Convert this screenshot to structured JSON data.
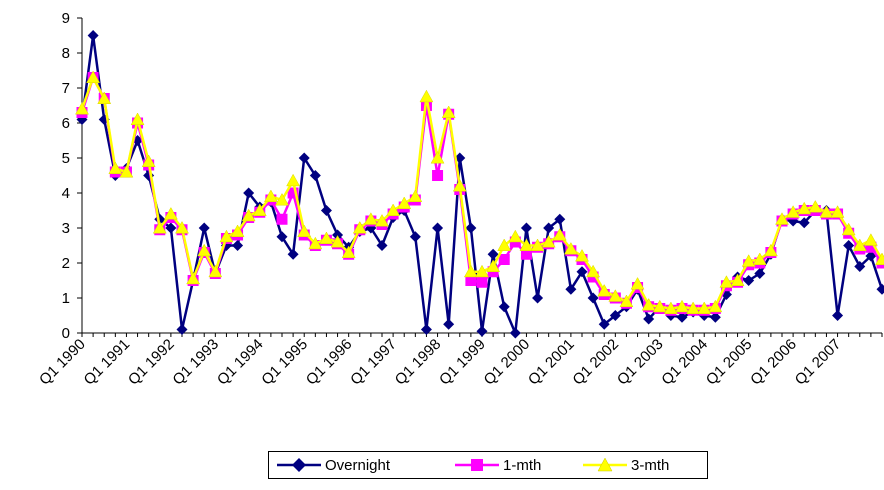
{
  "chart_data": {
    "type": "line",
    "title": "",
    "xlabel": "",
    "ylabel": "",
    "ylim": [
      0,
      9
    ],
    "yticks": [
      0,
      1,
      2,
      3,
      4,
      5,
      6,
      7,
      8,
      9
    ],
    "grid": false,
    "legend_position": "bottom",
    "x_tick_labels": [
      "Q1 1990",
      "Q1 1991",
      "Q1 1992",
      "Q1 1993",
      "Q1 1994",
      "Q1 1995",
      "Q1 1996",
      "Q1 1997",
      "Q1 1998",
      "Q1 1999",
      "Q1 2000",
      "Q1 2001",
      "Q1 2002",
      "Q1 2003",
      "Q1 2004",
      "Q1 2005",
      "Q1 2006",
      "Q1 2007"
    ],
    "x": [
      "Q1 1990",
      "Q2 1990",
      "Q3 1990",
      "Q4 1990",
      "Q1 1991",
      "Q2 1991",
      "Q3 1991",
      "Q4 1991",
      "Q1 1992",
      "Q2 1992",
      "Q3 1992",
      "Q4 1992",
      "Q1 1993",
      "Q2 1993",
      "Q3 1993",
      "Q4 1993",
      "Q1 1994",
      "Q2 1994",
      "Q3 1994",
      "Q4 1994",
      "Q1 1995",
      "Q2 1995",
      "Q3 1995",
      "Q4 1995",
      "Q1 1996",
      "Q2 1996",
      "Q3 1996",
      "Q4 1996",
      "Q1 1997",
      "Q2 1997",
      "Q3 1997",
      "Q4 1997",
      "Q1 1998",
      "Q2 1998",
      "Q3 1998",
      "Q4 1998",
      "Q1 1999",
      "Q2 1999",
      "Q3 1999",
      "Q4 1999",
      "Q1 2000",
      "Q2 2000",
      "Q3 2000",
      "Q4 2000",
      "Q1 2001",
      "Q2 2001",
      "Q3 2001",
      "Q4 2001",
      "Q1 2002",
      "Q2 2002",
      "Q3 2002",
      "Q4 2002",
      "Q1 2003",
      "Q2 2003",
      "Q3 2003",
      "Q4 2003",
      "Q1 2004",
      "Q2 2004",
      "Q3 2004",
      "Q4 2004",
      "Q1 2005",
      "Q2 2005",
      "Q3 2005",
      "Q4 2005",
      "Q1 2006",
      "Q2 2006",
      "Q3 2006",
      "Q4 2006",
      "Q1 2007",
      "Q2 2007",
      "Q3 2007",
      "Q4 2007",
      "Q1 2008"
    ],
    "series": [
      {
        "name": "Overnight",
        "color": "#000080",
        "marker": "diamond",
        "values": [
          6.1,
          8.5,
          6.1,
          4.5,
          4.7,
          5.5,
          4.5,
          3.25,
          3.0,
          0.1,
          1.5,
          3.0,
          1.7,
          2.5,
          2.5,
          4.0,
          3.6,
          3.75,
          2.75,
          2.25,
          5.0,
          4.5,
          3.5,
          2.8,
          2.45,
          2.9,
          3.0,
          2.5,
          3.3,
          3.5,
          2.75,
          0.1,
          3.0,
          0.25,
          5.0,
          3.0,
          0.05,
          2.25,
          0.75,
          0.0,
          3.0,
          1.0,
          3.0,
          3.25,
          1.25,
          1.75,
          1.0,
          0.25,
          0.5,
          0.75,
          1.25,
          0.4,
          0.75,
          0.5,
          0.45,
          0.6,
          0.5,
          0.45,
          1.1,
          1.6,
          1.5,
          1.7,
          2.25,
          3.25,
          3.2,
          3.15,
          3.5,
          3.5,
          0.5,
          2.5,
          1.9,
          2.2,
          1.25
        ]
      },
      {
        "name": "1-mth",
        "color": "#FF00FF",
        "marker": "square",
        "values": [
          6.3,
          7.3,
          6.7,
          4.6,
          4.6,
          6.0,
          4.8,
          2.95,
          3.3,
          2.95,
          1.5,
          2.3,
          1.7,
          2.7,
          2.8,
          3.3,
          3.45,
          3.8,
          3.25,
          4.0,
          2.8,
          2.5,
          2.65,
          2.55,
          2.25,
          2.95,
          3.2,
          3.1,
          3.4,
          3.6,
          3.8,
          6.5,
          4.5,
          6.25,
          4.1,
          1.5,
          1.45,
          1.75,
          2.1,
          2.6,
          2.25,
          2.45,
          2.55,
          2.75,
          2.35,
          2.1,
          1.6,
          1.1,
          1.0,
          0.85,
          1.3,
          0.75,
          0.7,
          0.65,
          0.7,
          0.65,
          0.65,
          0.7,
          1.35,
          1.45,
          1.95,
          2.0,
          2.3,
          3.2,
          3.4,
          3.5,
          3.5,
          3.4,
          3.4,
          2.85,
          2.4,
          2.45,
          2.0
        ]
      },
      {
        "name": "3-mth",
        "color": "#FFFF00",
        "marker": "triangle",
        "values": [
          6.4,
          7.3,
          6.7,
          4.7,
          4.6,
          6.1,
          4.9,
          3.0,
          3.4,
          3.0,
          1.55,
          2.35,
          1.75,
          2.75,
          2.9,
          3.35,
          3.5,
          3.9,
          3.8,
          4.35,
          2.9,
          2.55,
          2.7,
          2.6,
          2.3,
          3.0,
          3.25,
          3.2,
          3.5,
          3.7,
          3.9,
          6.75,
          5.0,
          6.3,
          4.2,
          1.75,
          1.75,
          1.9,
          2.5,
          2.75,
          2.5,
          2.5,
          2.6,
          2.8,
          2.4,
          2.2,
          1.75,
          1.2,
          1.05,
          0.9,
          1.4,
          0.8,
          0.75,
          0.7,
          0.75,
          0.7,
          0.7,
          0.75,
          1.45,
          1.5,
          2.05,
          2.1,
          2.35,
          3.25,
          3.45,
          3.55,
          3.6,
          3.45,
          3.45,
          2.95,
          2.5,
          2.65,
          2.1
        ]
      }
    ]
  }
}
